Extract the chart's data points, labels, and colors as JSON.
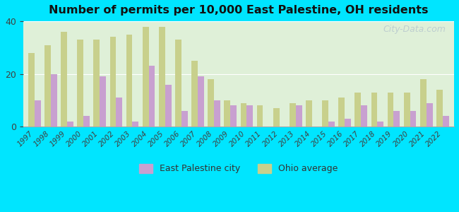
{
  "title": "Number of permits per 10,000 East Palestine, OH residents",
  "years": [
    1997,
    1998,
    1999,
    2000,
    2001,
    2002,
    2003,
    2004,
    2005,
    2006,
    2007,
    2008,
    2009,
    2010,
    2011,
    2012,
    2013,
    2014,
    2015,
    2016,
    2017,
    2018,
    2019,
    2020,
    2021,
    2022
  ],
  "city_values": [
    10,
    20,
    2,
    4,
    19,
    11,
    2,
    23,
    16,
    6,
    19,
    10,
    8,
    8,
    0,
    0,
    8,
    0,
    2,
    3,
    8,
    2,
    6,
    6,
    9,
    4
  ],
  "ohio_values": [
    28,
    31,
    36,
    33,
    33,
    34,
    35,
    38,
    38,
    33,
    25,
    18,
    10,
    9,
    8,
    7,
    9,
    10,
    10,
    11,
    13,
    13,
    13,
    13,
    18,
    14
  ],
  "city_color": "#c8a0d0",
  "ohio_color": "#c8d08c",
  "background_outer": "#00e5ff",
  "background_inner": "#e8f5e0",
  "background_inner2": "#d0eaff",
  "ylim": [
    0,
    40
  ],
  "yticks": [
    0,
    20,
    40
  ],
  "xlabel": "",
  "ylabel": "",
  "legend_city": "East Palestine city",
  "legend_ohio": "Ohio average",
  "watermark": "City-Data.com"
}
